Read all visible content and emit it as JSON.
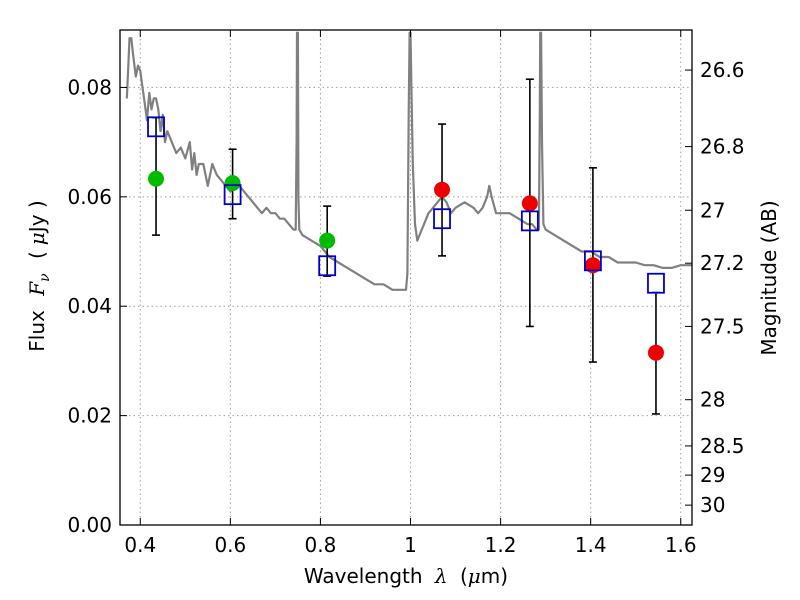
{
  "chart_data": {
    "type": "scatter",
    "xlabel": "Wavelength",
    "xlabel_symbol": "λ",
    "xlabel_unit_open": "(",
    "xlabel_unit_mu": "μ",
    "xlabel_unit_rest": "m)",
    "ylabel": "Flux",
    "ylabel_symbol": "F",
    "ylabel_sub": "ν",
    "ylabel_unit_open": "(",
    "ylabel_unit_mu": "μ",
    "ylabel_unit_rest": "Jy )",
    "y2label": "Magnitude (AB)",
    "xlim": [
      0.355,
      1.625
    ],
    "ylim": [
      0.0,
      0.0905
    ],
    "grid": true,
    "x_ticks": [
      {
        "value": 0.4,
        "label": "0.4"
      },
      {
        "value": 0.6,
        "label": "0.6"
      },
      {
        "value": 0.8,
        "label": "0.8"
      },
      {
        "value": 1.0,
        "label": "1"
      },
      {
        "value": 1.2,
        "label": "1.2"
      },
      {
        "value": 1.4,
        "label": "1.4"
      },
      {
        "value": 1.6,
        "label": "1.6"
      }
    ],
    "y_ticks": [
      {
        "value": 0.0,
        "label": "0.00"
      },
      {
        "value": 0.02,
        "label": "0.02"
      },
      {
        "value": 0.04,
        "label": "0.04"
      },
      {
        "value": 0.06,
        "label": "0.06"
      },
      {
        "value": 0.08,
        "label": "0.08"
      }
    ],
    "y2_ticks": [
      {
        "value": 26.6,
        "label": "26.6"
      },
      {
        "value": 26.8,
        "label": "26.8"
      },
      {
        "value": 27.0,
        "label": "27"
      },
      {
        "value": 27.2,
        "label": "27.2"
      },
      {
        "value": 27.5,
        "label": "27.5"
      },
      {
        "value": 28.0,
        "label": "28"
      },
      {
        "value": 28.5,
        "label": "28.5"
      },
      {
        "value": 29.0,
        "label": "29"
      },
      {
        "value": 30.0,
        "label": "30"
      }
    ],
    "colors": {
      "template": "#808080",
      "model": "#0000cc",
      "green": "#00bb00",
      "red": "#ee0000",
      "errorbar": "#000000",
      "grid": "#a0a0a0"
    },
    "series": [
      {
        "kind": "line",
        "points": [
          [
            0.37,
            0.078
          ],
          [
            0.373,
            0.083
          ],
          [
            0.376,
            0.089
          ],
          [
            0.38,
            0.089
          ],
          [
            0.384,
            0.086
          ],
          [
            0.39,
            0.082
          ],
          [
            0.395,
            0.084
          ],
          [
            0.4,
            0.083
          ],
          [
            0.405,
            0.08
          ],
          [
            0.41,
            0.077
          ],
          [
            0.415,
            0.074
          ],
          [
            0.42,
            0.079
          ],
          [
            0.425,
            0.076
          ],
          [
            0.43,
            0.078
          ],
          [
            0.435,
            0.078
          ],
          [
            0.44,
            0.076
          ],
          [
            0.445,
            0.072
          ],
          [
            0.45,
            0.075
          ],
          [
            0.455,
            0.07
          ],
          [
            0.46,
            0.072
          ],
          [
            0.47,
            0.07
          ],
          [
            0.48,
            0.068
          ],
          [
            0.49,
            0.069
          ],
          [
            0.5,
            0.067
          ],
          [
            0.51,
            0.07
          ],
          [
            0.515,
            0.065
          ],
          [
            0.52,
            0.068
          ],
          [
            0.525,
            0.064
          ],
          [
            0.53,
            0.066
          ],
          [
            0.54,
            0.066
          ],
          [
            0.55,
            0.062
          ],
          [
            0.56,
            0.066
          ],
          [
            0.57,
            0.064
          ],
          [
            0.58,
            0.063
          ],
          [
            0.59,
            0.062
          ],
          [
            0.6,
            0.061
          ],
          [
            0.62,
            0.062
          ],
          [
            0.64,
            0.06
          ],
          [
            0.66,
            0.058
          ],
          [
            0.67,
            0.057
          ],
          [
            0.68,
            0.058
          ],
          [
            0.69,
            0.057
          ],
          [
            0.7,
            0.057
          ],
          [
            0.71,
            0.056
          ],
          [
            0.72,
            0.056
          ],
          [
            0.73,
            0.055
          ],
          [
            0.74,
            0.054
          ],
          [
            0.745,
            0.054
          ],
          [
            0.747,
            0.07
          ],
          [
            0.748,
            0.09
          ],
          [
            0.75,
            0.09
          ],
          [
            0.751,
            0.06
          ],
          [
            0.753,
            0.054
          ],
          [
            0.76,
            0.053
          ],
          [
            0.78,
            0.052
          ],
          [
            0.8,
            0.051
          ],
          [
            0.82,
            0.049
          ],
          [
            0.84,
            0.048
          ],
          [
            0.86,
            0.047
          ],
          [
            0.88,
            0.046
          ],
          [
            0.9,
            0.045
          ],
          [
            0.92,
            0.044
          ],
          [
            0.94,
            0.044
          ],
          [
            0.96,
            0.043
          ],
          [
            0.98,
            0.043
          ],
          [
            0.99,
            0.043
          ],
          [
            0.993,
            0.046
          ],
          [
            0.996,
            0.075
          ],
          [
            0.998,
            0.09
          ],
          [
            1.0,
            0.09
          ],
          [
            1.002,
            0.08
          ],
          [
            1.005,
            0.066
          ],
          [
            1.01,
            0.055
          ],
          [
            1.015,
            0.052
          ],
          [
            1.02,
            0.053
          ],
          [
            1.03,
            0.055
          ],
          [
            1.04,
            0.057
          ],
          [
            1.05,
            0.058
          ],
          [
            1.06,
            0.059
          ],
          [
            1.07,
            0.06
          ],
          [
            1.08,
            0.059
          ],
          [
            1.09,
            0.057
          ],
          [
            1.1,
            0.058
          ],
          [
            1.12,
            0.059
          ],
          [
            1.14,
            0.058
          ],
          [
            1.15,
            0.057
          ],
          [
            1.16,
            0.058
          ],
          [
            1.17,
            0.06
          ],
          [
            1.175,
            0.062
          ],
          [
            1.18,
            0.06
          ],
          [
            1.19,
            0.057
          ],
          [
            1.2,
            0.057
          ],
          [
            1.22,
            0.057
          ],
          [
            1.24,
            0.056
          ],
          [
            1.26,
            0.055
          ],
          [
            1.27,
            0.055
          ],
          [
            1.28,
            0.054
          ],
          [
            1.285,
            0.054
          ],
          [
            1.287,
            0.075
          ],
          [
            1.288,
            0.09
          ],
          [
            1.29,
            0.09
          ],
          [
            1.292,
            0.07
          ],
          [
            1.295,
            0.055
          ],
          [
            1.3,
            0.054
          ],
          [
            1.32,
            0.053
          ],
          [
            1.34,
            0.052
          ],
          [
            1.36,
            0.051
          ],
          [
            1.38,
            0.05
          ],
          [
            1.4,
            0.05
          ],
          [
            1.42,
            0.049
          ],
          [
            1.44,
            0.049
          ],
          [
            1.46,
            0.048
          ],
          [
            1.48,
            0.048
          ],
          [
            1.5,
            0.048
          ],
          [
            1.52,
            0.0475
          ],
          [
            1.54,
            0.0475
          ],
          [
            1.56,
            0.047
          ],
          [
            1.58,
            0.047
          ],
          [
            1.6,
            0.0475
          ],
          [
            1.625,
            0.0475
          ]
        ]
      },
      {
        "kind": "model-squares",
        "points": [
          [
            0.435,
            0.0728
          ],
          [
            0.605,
            0.0604
          ],
          [
            0.815,
            0.0474
          ],
          [
            1.07,
            0.056
          ],
          [
            1.265,
            0.0556
          ],
          [
            1.405,
            0.0483
          ],
          [
            1.545,
            0.0442
          ]
        ]
      },
      {
        "kind": "observed",
        "points": [
          {
            "x": 0.435,
            "y": 0.0633,
            "lo": 0.053,
            "hi": 0.0745,
            "color": "green"
          },
          {
            "x": 0.605,
            "y": 0.0625,
            "lo": 0.056,
            "hi": 0.0687,
            "color": "green"
          },
          {
            "x": 0.815,
            "y": 0.052,
            "lo": 0.0455,
            "hi": 0.0583,
            "color": "green"
          },
          {
            "x": 1.07,
            "y": 0.0613,
            "lo": 0.0492,
            "hi": 0.0733,
            "color": "red"
          },
          {
            "x": 1.265,
            "y": 0.0588,
            "lo": 0.0363,
            "hi": 0.0815,
            "color": "red"
          },
          {
            "x": 1.405,
            "y": 0.0475,
            "lo": 0.0298,
            "hi": 0.0653,
            "color": "red"
          },
          {
            "x": 1.545,
            "y": 0.0315,
            "lo": 0.0203,
            "hi": 0.0425,
            "color": "red"
          }
        ]
      }
    ]
  }
}
